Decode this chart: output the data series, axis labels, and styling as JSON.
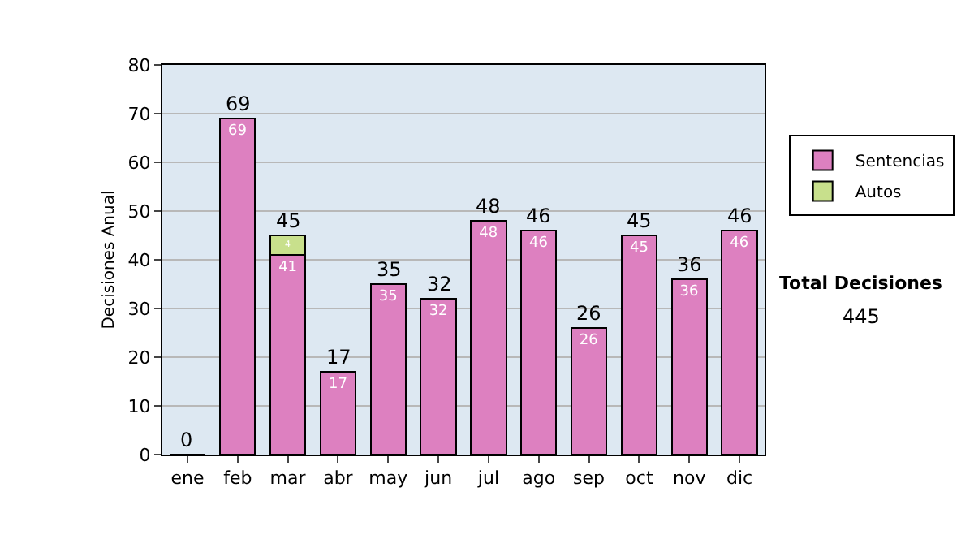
{
  "chart_data": {
    "type": "bar",
    "stacked": true,
    "ylabel": "Decisiones Anual",
    "categories": [
      "ene",
      "feb",
      "mar",
      "abr",
      "may",
      "jun",
      "jul",
      "ago",
      "sep",
      "oct",
      "nov",
      "dic"
    ],
    "series": [
      {
        "name": "Sentencias",
        "color": "#dd80c0",
        "values": [
          0,
          69,
          41,
          17,
          35,
          32,
          48,
          46,
          26,
          45,
          36,
          46
        ],
        "value_labels": [
          null,
          "69",
          "41",
          "17",
          "35",
          "32",
          "48",
          "46",
          "26",
          "45",
          "36",
          "46"
        ]
      },
      {
        "name": "Autos",
        "color": "#c8e08c",
        "values": [
          null,
          null,
          4,
          null,
          null,
          null,
          null,
          null,
          null,
          null,
          null,
          null
        ],
        "value_labels": [
          null,
          null,
          "4",
          null,
          null,
          null,
          null,
          null,
          null,
          null,
          null,
          null
        ]
      }
    ],
    "totals": [
      "0",
      "69",
      "45",
      "17",
      "35",
      "32",
      "48",
      "46",
      "26",
      "45",
      "36",
      "46"
    ],
    "ylim": [
      0,
      80
    ],
    "yticks": [
      0,
      10,
      20,
      30,
      40,
      50,
      60,
      70,
      80
    ],
    "grid": "y",
    "legend": "right",
    "annotations": [
      "Total Decisiones",
      "445"
    ]
  }
}
